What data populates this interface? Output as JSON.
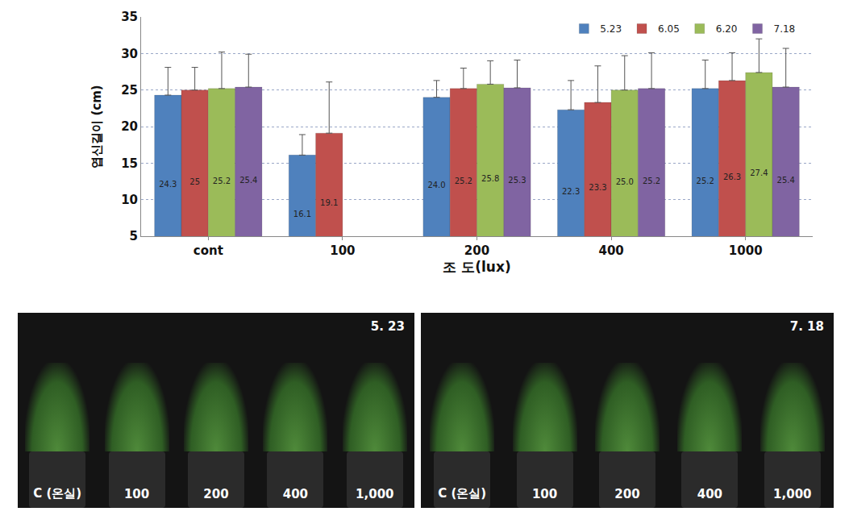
{
  "chart_data": {
    "type": "bar",
    "x_label": "조 도(lux)",
    "y_label": "엽신길이 (cm)",
    "categories": [
      "cont",
      "100",
      "200",
      "400",
      "1000"
    ],
    "series": [
      {
        "name": "5.23",
        "color": "#4f81bd",
        "values": [
          24.3,
          16.1,
          24.0,
          22.3,
          25.2
        ],
        "value_labels": [
          "24.3",
          "16.1",
          "24.0",
          "22.3",
          "25.2"
        ],
        "errors": [
          3.8,
          2.8,
          2.3,
          4.0,
          3.9
        ]
      },
      {
        "name": "6.05",
        "color": "#c0504d",
        "values": [
          25,
          19.1,
          25.2,
          23.3,
          26.3
        ],
        "value_labels": [
          "25",
          "19.1",
          "25.2",
          "23.3",
          "26.3"
        ],
        "errors": [
          3.1,
          7.0,
          2.8,
          5.0,
          3.8
        ]
      },
      {
        "name": "6.20",
        "color": "#9bbb59",
        "values": [
          25.2,
          null,
          25.8,
          25.0,
          27.4
        ],
        "value_labels": [
          "25.2",
          null,
          "25.8",
          "25.0",
          "27.4"
        ],
        "errors": [
          5.0,
          null,
          3.2,
          4.7,
          4.6
        ]
      },
      {
        "name": "7.18",
        "color": "#8064a2",
        "values": [
          25.4,
          null,
          25.3,
          25.2,
          25.4
        ],
        "value_labels": [
          "25.4",
          null,
          "25.3",
          "25.2",
          "25.4"
        ],
        "errors": [
          4.5,
          null,
          3.8,
          4.9,
          5.3
        ]
      }
    ],
    "ylim": [
      5,
      35
    ],
    "yticks": [
      5,
      10,
      15,
      20,
      25,
      30,
      35
    ],
    "grid": true,
    "legend": "top-right",
    "data_labels": true
  },
  "photos": [
    {
      "date": "5. 23",
      "labels": [
        "C (온실)",
        "100",
        "200",
        "400",
        "1,000"
      ]
    },
    {
      "date": "7. 18",
      "labels": [
        "C (온실)",
        "100",
        "200",
        "400",
        "1,000"
      ]
    }
  ]
}
